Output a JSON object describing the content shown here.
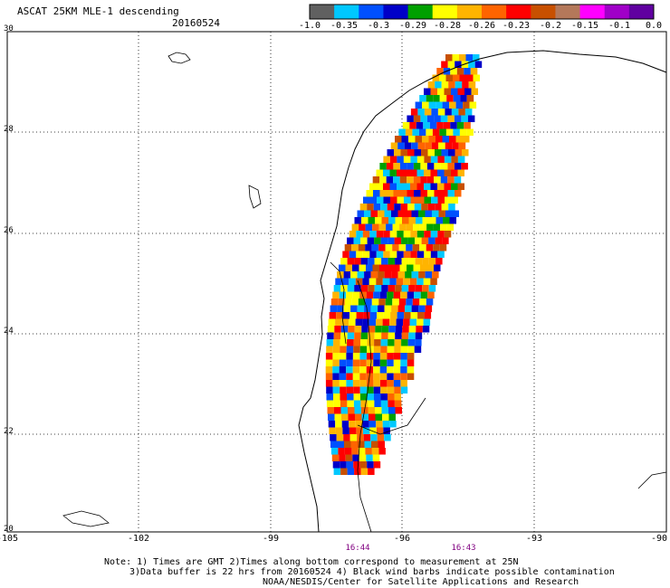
{
  "header": {
    "title": "ASCAT 25KM MLE-1 descending",
    "date": "20160524"
  },
  "colorbar": {
    "colors": [
      "#606060",
      "#00c8ff",
      "#0050ff",
      "#0000c8",
      "#00a000",
      "#ffff00",
      "#ffb400",
      "#ff6400",
      "#ff0000",
      "#c85000",
      "#b4785a",
      "#ff00ff",
      "#a000c8",
      "#6000a0"
    ],
    "labels": [
      "-1.0",
      "-0.35",
      "-0.3",
      "-0.29",
      "-0.28",
      "-0.26",
      "-0.23",
      "-0.2",
      "-0.15",
      "-0.1",
      "0.0"
    ]
  },
  "axes": {
    "lat_labels": [
      "30",
      "28",
      "26",
      "24",
      "22",
      "20"
    ],
    "lon_labels": [
      "-105",
      "-102",
      "-99",
      "-96",
      "-93",
      "-90"
    ]
  },
  "times": [
    "16:44",
    "16:43"
  ],
  "notes": [
    "Note: 1) Times are GMT 2)Times along bottom correspond to measurement at 25N",
    "3)Data buffer is 22 hrs from 20160524 4) Black wind barbs indicate possible contamination",
    "NOAA/NESDIS/Center for Satellite Applications and Research"
  ]
}
